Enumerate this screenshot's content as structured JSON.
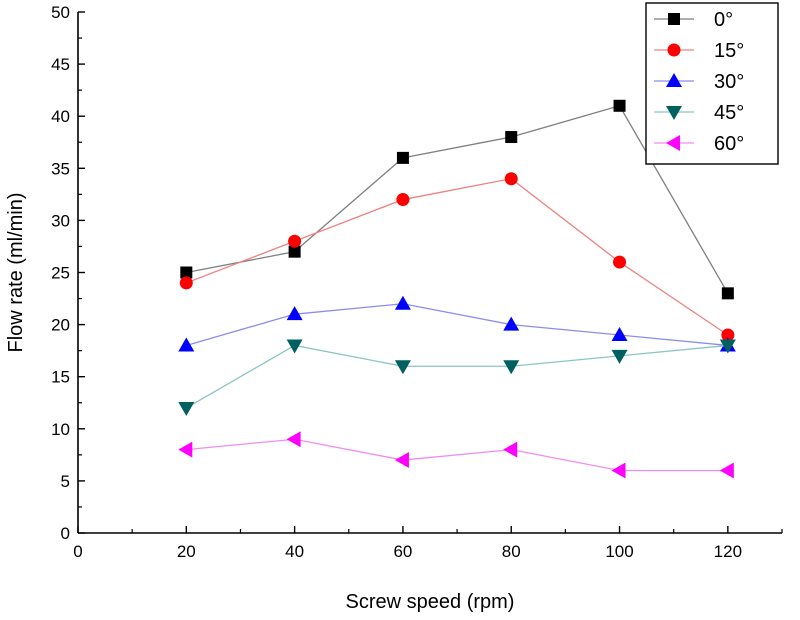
{
  "chart_data": {
    "type": "line",
    "title": "",
    "xlabel": "Screw speed (rpm)",
    "ylabel": "Flow rate (ml/min)",
    "xlim": [
      0,
      130
    ],
    "ylim": [
      0,
      50
    ],
    "xticks": [
      0,
      20,
      40,
      60,
      80,
      100,
      120
    ],
    "yticks": [
      0,
      5,
      10,
      15,
      20,
      25,
      30,
      35,
      40,
      45,
      50
    ],
    "x": [
      20,
      40,
      60,
      80,
      100,
      120
    ],
    "grid": false,
    "legend_position": "top-right",
    "series": [
      {
        "name": "0°",
        "values": [
          25,
          27,
          36,
          38,
          41,
          23
        ],
        "line_color": "#7f7f7f",
        "marker_color": "#000000",
        "marker": "square"
      },
      {
        "name": "15°",
        "values": [
          24,
          28,
          32,
          34,
          26,
          19
        ],
        "line_color": "#f08080",
        "marker_color": "#ff0000",
        "marker": "circle"
      },
      {
        "name": "30°",
        "values": [
          18,
          21,
          22,
          20,
          19,
          18
        ],
        "line_color": "#8c8cf0",
        "marker_color": "#0000ff",
        "marker": "triangle-up"
      },
      {
        "name": "45°",
        "values": [
          12,
          18,
          16,
          16,
          17,
          18
        ],
        "line_color": "#8cc4c4",
        "marker_color": "#006060",
        "marker": "triangle-down"
      },
      {
        "name": "60°",
        "values": [
          8,
          9,
          7,
          8,
          6,
          6
        ],
        "line_color": "#f08cf0",
        "marker_color": "#ff00ff",
        "marker": "triangle-left"
      }
    ]
  }
}
